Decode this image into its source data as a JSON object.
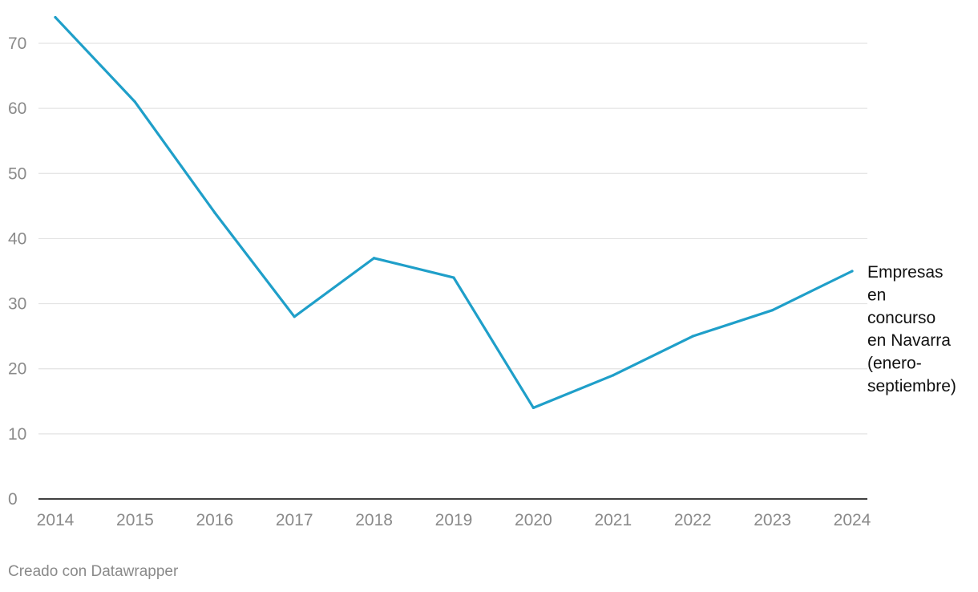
{
  "chart_data": {
    "type": "line",
    "title": "",
    "xlabel": "",
    "ylabel": "",
    "x": [
      "2014",
      "2015",
      "2016",
      "2017",
      "2018",
      "2019",
      "2020",
      "2021",
      "2022",
      "2023",
      "2024"
    ],
    "yticks": [
      0,
      10,
      20,
      30,
      40,
      50,
      60,
      70
    ],
    "ylim": [
      0,
      70
    ],
    "grid": true,
    "series": [
      {
        "name": "Empresas en concurso en Navarra (enero-septiembre)",
        "label_lines": [
          "Empresas",
          "en",
          "concurso",
          "en Navarra",
          "(enero-",
          "septiembre)"
        ],
        "values": [
          74,
          61,
          44,
          28,
          37,
          34,
          14,
          19,
          25,
          29,
          35
        ],
        "color": "#1f9fc9"
      }
    ]
  },
  "footer": {
    "credit": "Creado con Datawrapper"
  },
  "colors": {
    "grid": "#e3e3e3",
    "axis": "#000000",
    "tick_text": "#8a8a8a"
  }
}
